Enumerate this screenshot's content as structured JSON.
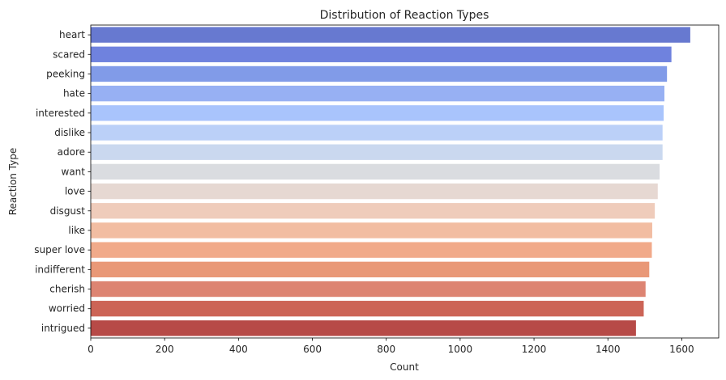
{
  "chart_data": {
    "type": "bar",
    "orientation": "horizontal",
    "title": "Distribution of Reaction Types",
    "xlabel": "Count",
    "ylabel": "Reaction Type",
    "xlim": [
      0,
      1700
    ],
    "xticks": [
      0,
      200,
      400,
      600,
      800,
      1000,
      1200,
      1400,
      1600
    ],
    "grid": false,
    "legend": "none",
    "categories": [
      "heart",
      "scared",
      "peeking",
      "hate",
      "interested",
      "dislike",
      "adore",
      "want",
      "love",
      "disgust",
      "like",
      "super love",
      "indifferent",
      "cherish",
      "worried",
      "intrigued"
    ],
    "values": [
      1623,
      1572,
      1560,
      1553,
      1551,
      1548,
      1548,
      1540,
      1535,
      1527,
      1520,
      1519,
      1512,
      1502,
      1497,
      1476
    ],
    "colors": [
      "#6779d0",
      "#6f82de",
      "#819be8",
      "#97b0f3",
      "#a9c4fc",
      "#bbd0f8",
      "#cad8ef",
      "#dadce0",
      "#e6d8d2",
      "#efccbb",
      "#f2bda2",
      "#f1aa8a",
      "#e99877",
      "#dd8472",
      "#cc6456",
      "#b74a47"
    ]
  }
}
